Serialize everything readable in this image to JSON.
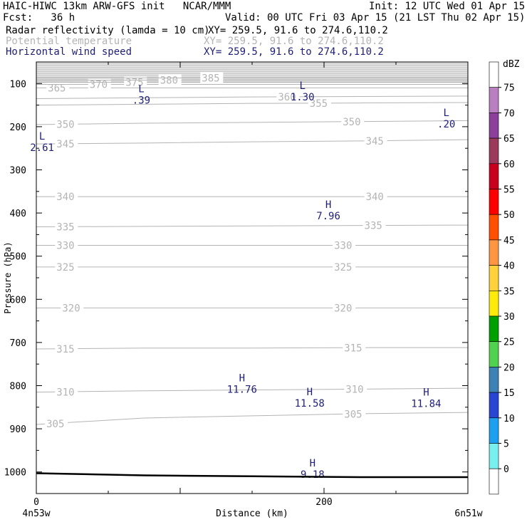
{
  "header": {
    "title": "HAIC-HIWC 13km ARW-GFS init   NCAR/MMM",
    "init": "Init: 12 UTC Wed 01 Apr 15",
    "fcst": "Fcst:   36 h",
    "valid": "Valid: 00 UTC Fri 03 Apr 15 (21 LST Thu 02 Apr 15)"
  },
  "fields": [
    {
      "name": "Radar reflectivity (lamda = 10 cm)",
      "xy": "XY= 259.5, 91.6 to 274.6,110.2",
      "color": "#000000"
    },
    {
      "name": "Potential temperature",
      "xy": "XY= 259.5, 91.6 to 274.6,110.2",
      "color": "#b4b4b4"
    },
    {
      "name": "Horizontal wind speed",
      "xy": "XY= 259.5, 91.6 to 274.6,110.2",
      "color": "#1e1e78"
    }
  ],
  "chart_data": {
    "type": "line",
    "xlabel": "Distance (km)",
    "ylabel": "Pressure (hPa)",
    "x_ticks": [
      "0",
      "200"
    ],
    "y_ticks": [
      "100",
      "200",
      "300",
      "400",
      "500",
      "600",
      "700",
      "800",
      "900",
      "1000"
    ],
    "x_ends": [
      "4n53w",
      "6n51w"
    ],
    "ylim": [
      1050,
      50
    ],
    "xlim": [
      0,
      300
    ],
    "colorbar": {
      "unit": "dBZ",
      "levels": [
        "75",
        "70",
        "65",
        "60",
        "55",
        "50",
        "45",
        "40",
        "35",
        "30",
        "25",
        "20",
        "15",
        "10",
        "5",
        "0"
      ],
      "colors": [
        "#ffffff",
        "#b97fc0",
        "#8c3f9b",
        "#9b3a5a",
        "#c8001e",
        "#ff0000",
        "#ff5000",
        "#ff9641",
        "#ffd23c",
        "#ffeb0a",
        "#00a000",
        "#50d250",
        "#3c82b4",
        "#2846d2",
        "#1ea0f0",
        "#78f0f0",
        "#ffffff"
      ]
    },
    "theta_contours": [
      {
        "label": "305",
        "p": [
          890,
          875,
          870,
          865,
          862
        ],
        "label_x": [
          7,
          214
        ]
      },
      {
        "label": "310",
        "p": [
          815,
          812,
          810,
          808,
          806
        ],
        "label_x": [
          14,
          215
        ]
      },
      {
        "label": "315",
        "p": [
          715,
          713,
          713,
          712,
          712
        ],
        "label_x": [
          14,
          214
        ]
      },
      {
        "label": "320",
        "p": [
          620,
          620,
          620,
          620,
          620
        ],
        "label_x": [
          18,
          207
        ]
      },
      {
        "label": "325",
        "p": [
          525,
          525,
          525,
          525,
          525
        ],
        "label_x": [
          14,
          207
        ]
      },
      {
        "label": "330",
        "p": [
          475,
          475,
          475,
          475,
          475
        ],
        "label_x": [
          14,
          207
        ]
      },
      {
        "label": "335",
        "p": [
          432,
          431,
          430,
          429,
          428
        ],
        "label_x": [
          14,
          228
        ]
      },
      {
        "label": "340",
        "p": [
          362,
          362,
          362,
          362,
          362
        ],
        "label_x": [
          14,
          229
        ]
      },
      {
        "label": "345",
        "p": [
          240,
          238,
          235,
          233,
          230
        ],
        "label_x": [
          14,
          229
        ]
      },
      {
        "label": "350",
        "p": [
          195,
          192,
          190,
          188,
          186
        ],
        "label_x": [
          14,
          213
        ]
      },
      {
        "label": "355",
        "p": [
          150,
          148,
          146,
          145,
          144
        ],
        "label_x": [
          190
        ]
      },
      {
        "label": "360",
        "p": [
          135,
          133,
          131,
          130,
          129
        ],
        "label_x": [
          168
        ]
      },
      {
        "label": "365",
        "p": [
          110,
          110,
          110,
          110,
          110
        ],
        "label_x": [
          8
        ]
      },
      {
        "label": "370",
        "p": [
          102,
          102,
          102,
          102,
          102
        ],
        "label_x": [
          37
        ]
      },
      {
        "label": "375",
        "p": [
          97,
          97,
          97,
          97,
          97
        ],
        "label_x": [
          62
        ]
      },
      {
        "label": "380",
        "p": [
          92,
          92,
          92,
          92,
          92
        ],
        "label_x": [
          86
        ]
      },
      {
        "label": "385",
        "p": [
          87,
          87,
          87,
          87,
          87
        ],
        "label_x": [
          115
        ]
      }
    ],
    "wind_extrema": [
      {
        "type": "L",
        "value": ".39",
        "x": 73,
        "p": 120
      },
      {
        "type": "L",
        "value": "1.30",
        "x": 185,
        "p": 113
      },
      {
        "type": "L",
        "value": ".20",
        "x": 285,
        "p": 175
      },
      {
        "type": "L",
        "value": "2.61",
        "x": 4,
        "p": 230
      },
      {
        "type": "H",
        "value": "7.96",
        "x": 203,
        "p": 388
      },
      {
        "type": "H",
        "value": "11.76",
        "x": 143,
        "p": 790
      },
      {
        "type": "H",
        "value": "11.58",
        "x": 190,
        "p": 822
      },
      {
        "type": "H",
        "value": "11.84",
        "x": 271,
        "p": 823
      },
      {
        "type": "H",
        "value": "9.18",
        "x": 192,
        "p": 987
      }
    ],
    "terrain_p": [
      1003,
      1008,
      1010,
      1012,
      1012
    ]
  }
}
